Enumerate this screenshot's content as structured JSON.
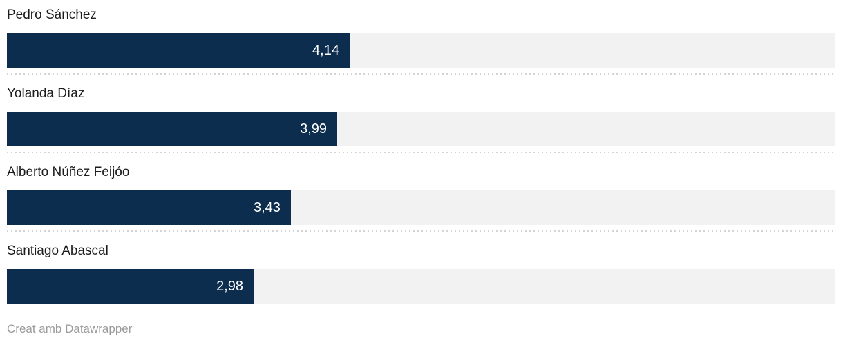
{
  "chart_data": {
    "type": "bar",
    "orientation": "horizontal",
    "title": "",
    "categories": [
      "Pedro Sánchez",
      "Yolanda Díaz",
      "Alberto Núñez Feijóo",
      "Santiago Abascal"
    ],
    "values": [
      4.14,
      3.99,
      3.43,
      2.98
    ],
    "value_labels": [
      "4,14",
      "3,99",
      "3,43",
      "2,98"
    ],
    "xlim": [
      0,
      10
    ],
    "xlabel": "",
    "ylabel": "",
    "grid": false,
    "legend_position": "none",
    "bar_color": "#0c2d4e",
    "track_color": "#f2f2f2",
    "value_label_color": "#ffffff",
    "category_label_color": "#1d1d1d",
    "separator_color": "#d4d4d4"
  },
  "footer": {
    "attribution": "Creat amb Datawrapper"
  }
}
